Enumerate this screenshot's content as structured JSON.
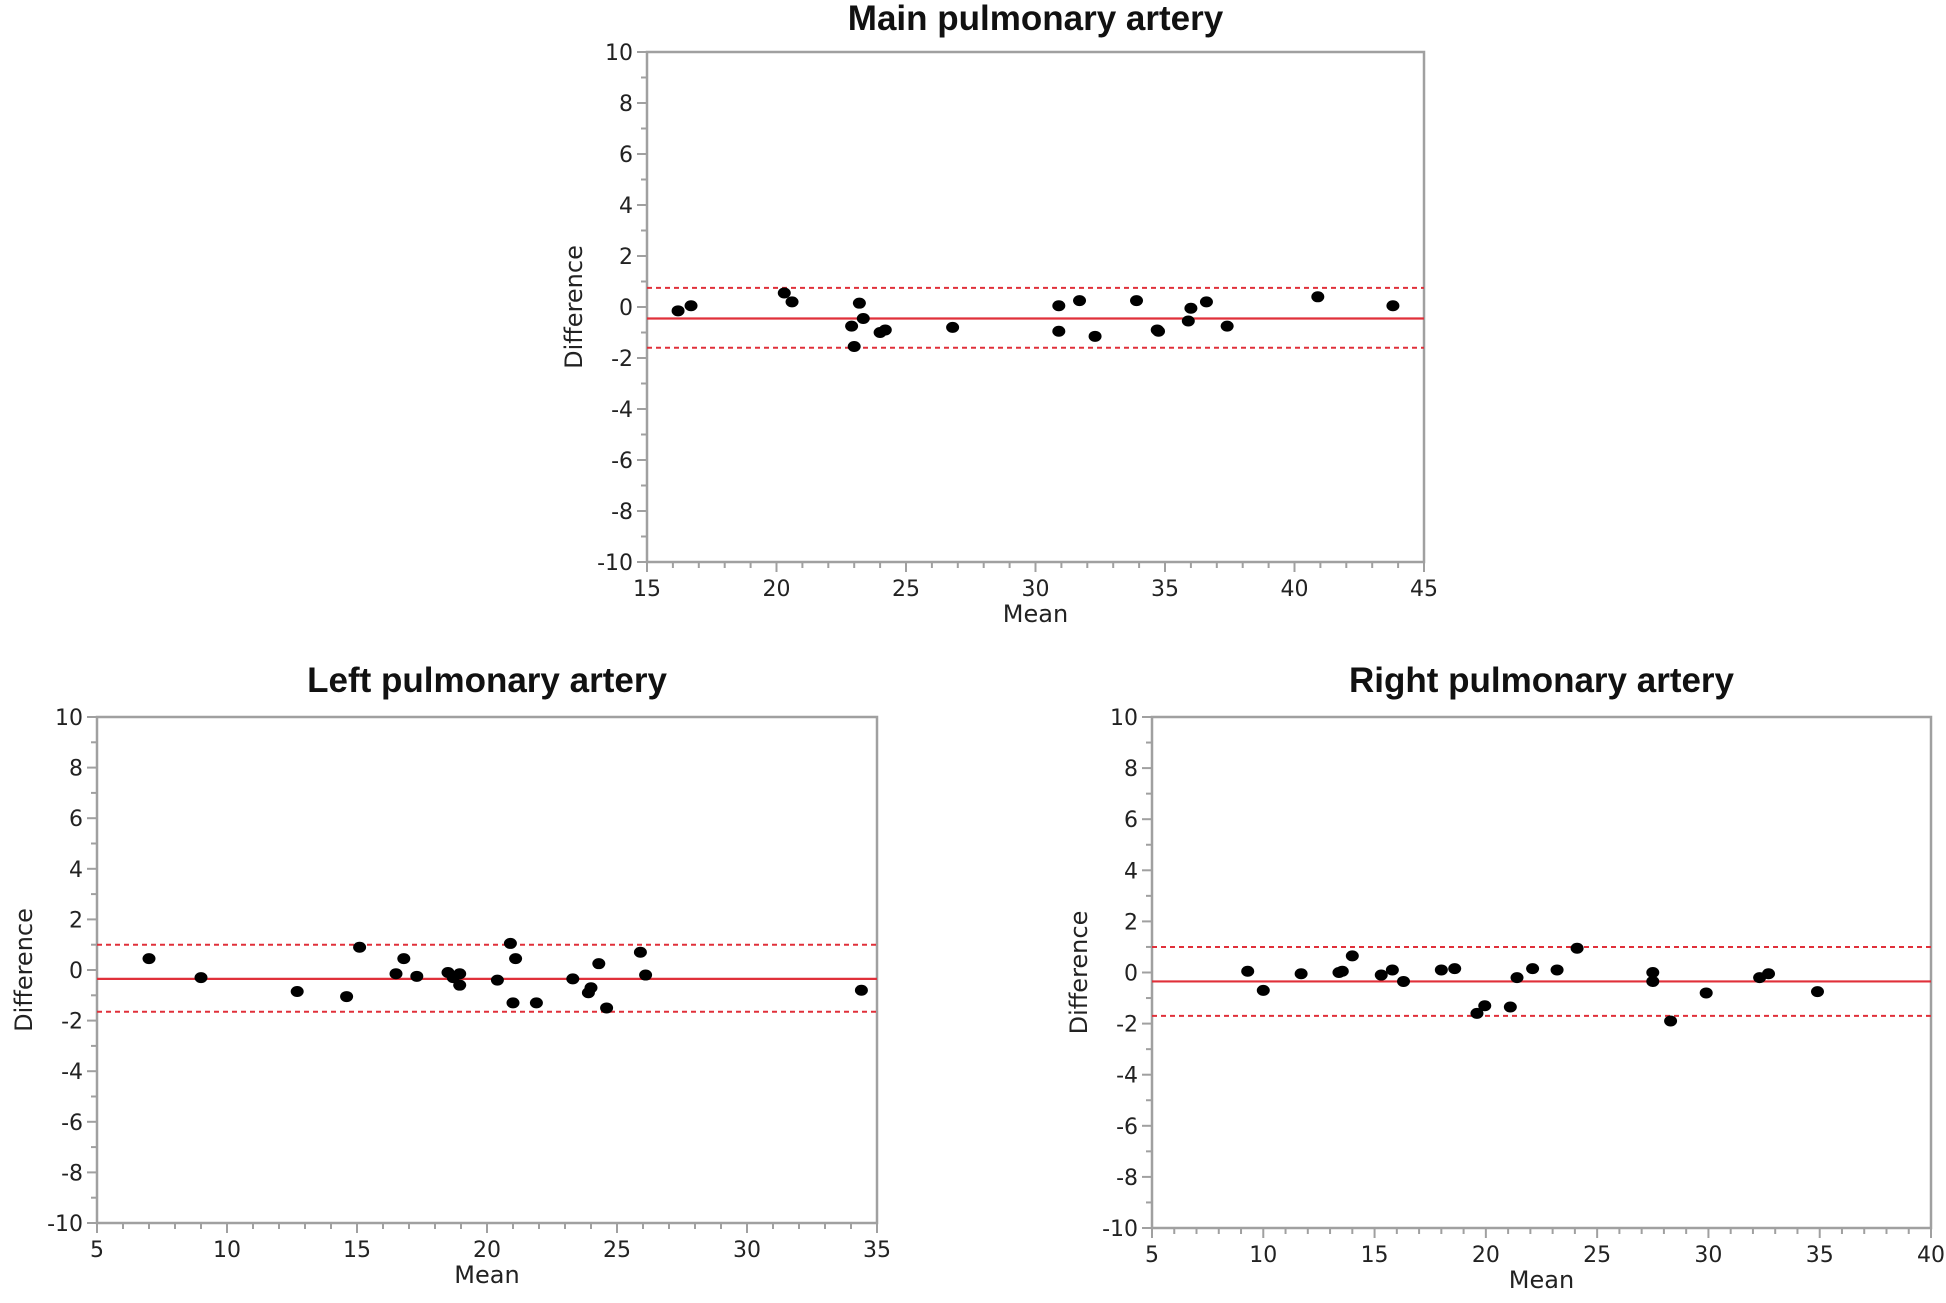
{
  "chart_data": [
    {
      "id": "main",
      "type": "scatter",
      "title": "Main pulmonary artery",
      "xlabel": "Mean",
      "ylabel": "Difference",
      "xlim": [
        15,
        45
      ],
      "ylim": [
        -10,
        10
      ],
      "xticks": [
        15,
        20,
        25,
        30,
        35,
        40,
        45
      ],
      "yticks": [
        10,
        8,
        6,
        4,
        2,
        0,
        -2,
        -4,
        -6,
        -8,
        -10
      ],
      "mean_difference": -0.45,
      "upper_limit": 0.75,
      "lower_limit": -1.6,
      "grid": false,
      "points": [
        [
          16.2,
          -0.15
        ],
        [
          16.7,
          0.05
        ],
        [
          20.3,
          0.55
        ],
        [
          20.6,
          0.2
        ],
        [
          22.9,
          -0.75
        ],
        [
          23.0,
          -1.55
        ],
        [
          23.2,
          0.15
        ],
        [
          23.35,
          -0.45
        ],
        [
          24.0,
          -1.0
        ],
        [
          24.2,
          -0.9
        ],
        [
          26.8,
          -0.8
        ],
        [
          30.9,
          0.05
        ],
        [
          30.9,
          -0.95
        ],
        [
          31.7,
          0.25
        ],
        [
          32.3,
          -1.15
        ],
        [
          33.9,
          0.25
        ],
        [
          34.7,
          -0.9
        ],
        [
          34.75,
          -0.95
        ],
        [
          35.9,
          -0.55
        ],
        [
          36.0,
          -0.05
        ],
        [
          36.6,
          0.2
        ],
        [
          37.4,
          -0.75
        ],
        [
          40.9,
          0.4
        ],
        [
          43.8,
          0.05
        ]
      ]
    },
    {
      "id": "left",
      "type": "scatter",
      "title": "Left pulmonary artery",
      "xlabel": "Mean",
      "ylabel": "Difference",
      "xlim": [
        5,
        35
      ],
      "ylim": [
        -10,
        10
      ],
      "xticks": [
        5,
        10,
        15,
        20,
        25,
        30,
        35
      ],
      "yticks": [
        10,
        8,
        6,
        4,
        2,
        0,
        -2,
        -4,
        -6,
        -8,
        -10
      ],
      "mean_difference": -0.35,
      "upper_limit": 1.0,
      "lower_limit": -1.65,
      "grid": false,
      "points": [
        [
          7.0,
          0.45
        ],
        [
          9.0,
          -0.3
        ],
        [
          12.7,
          -0.85
        ],
        [
          14.6,
          -1.05
        ],
        [
          15.1,
          0.9
        ],
        [
          16.5,
          -0.15
        ],
        [
          16.8,
          0.45
        ],
        [
          17.3,
          -0.25
        ],
        [
          18.5,
          -0.1
        ],
        [
          18.7,
          -0.3
        ],
        [
          18.95,
          -0.6
        ],
        [
          18.95,
          -0.15
        ],
        [
          20.4,
          -0.4
        ],
        [
          20.9,
          1.05
        ],
        [
          21.0,
          -1.3
        ],
        [
          21.1,
          0.45
        ],
        [
          21.9,
          -1.3
        ],
        [
          23.3,
          -0.35
        ],
        [
          23.9,
          -0.9
        ],
        [
          24.0,
          -0.7
        ],
        [
          24.3,
          0.25
        ],
        [
          24.6,
          -1.5
        ],
        [
          25.9,
          0.7
        ],
        [
          26.1,
          -0.2
        ],
        [
          34.4,
          -0.8
        ]
      ]
    },
    {
      "id": "right",
      "type": "scatter",
      "title": "Right pulmonary artery",
      "xlabel": "Mean",
      "ylabel": "Difference",
      "xlim": [
        5,
        40
      ],
      "ylim": [
        -10,
        10
      ],
      "xticks": [
        5,
        10,
        15,
        20,
        25,
        30,
        35,
        40
      ],
      "yticks": [
        10,
        8,
        6,
        4,
        2,
        0,
        -2,
        -4,
        -6,
        -8,
        -10
      ],
      "mean_difference": -0.35,
      "upper_limit": 1.0,
      "lower_limit": -1.7,
      "grid": false,
      "points": [
        [
          9.3,
          0.05
        ],
        [
          10.0,
          -0.7
        ],
        [
          11.7,
          -0.05
        ],
        [
          13.4,
          0.0
        ],
        [
          13.55,
          0.05
        ],
        [
          14.0,
          0.65
        ],
        [
          15.3,
          -0.1
        ],
        [
          15.8,
          0.1
        ],
        [
          16.3,
          -0.35
        ],
        [
          18.0,
          0.1
        ],
        [
          18.6,
          0.15
        ],
        [
          19.6,
          -1.6
        ],
        [
          19.95,
          -1.3
        ],
        [
          21.1,
          -1.35
        ],
        [
          21.4,
          -0.2
        ],
        [
          22.1,
          0.15
        ],
        [
          23.2,
          0.1
        ],
        [
          24.1,
          0.95
        ],
        [
          27.5,
          0.0
        ],
        [
          27.5,
          -0.35
        ],
        [
          28.3,
          -1.9
        ],
        [
          29.9,
          -0.8
        ],
        [
          32.3,
          -0.2
        ],
        [
          32.7,
          -0.05
        ],
        [
          34.9,
          -0.75
        ]
      ]
    }
  ]
}
